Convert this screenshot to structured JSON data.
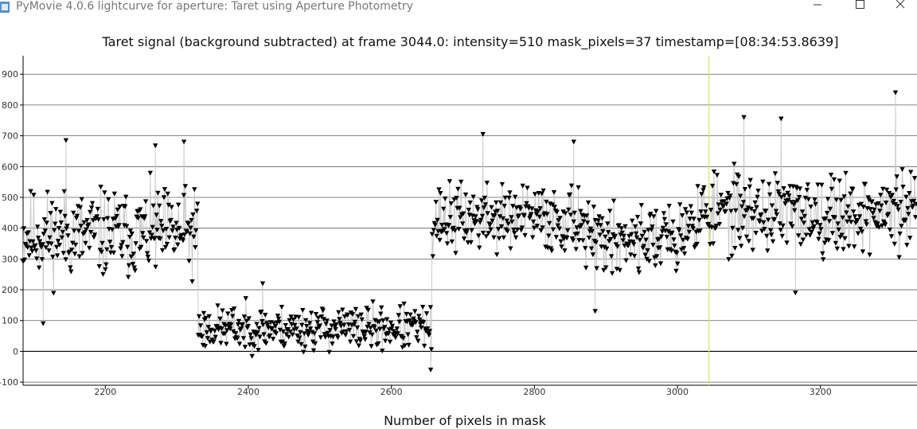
{
  "window": {
    "title": "PyMovie 4.0.6 lightcurve for aperture: Taret using Aperture Photometry",
    "controls": {
      "minimize_icon": "minimize-icon",
      "maximize_icon": "maximize-icon",
      "close_icon": "close-icon"
    }
  },
  "chart_data": {
    "type": "scatter",
    "title": "Taret signal (background subtracted) at frame 3044.0: intensity=510 mask_pixels=37 timestamp=[08:34:53.8639]",
    "xlabel": "Number of pixels in mask",
    "ylabel": "",
    "xlim": [
      2085,
      3335
    ],
    "ylim": [
      -110,
      960
    ],
    "x_ticks": [
      2200,
      2400,
      2600,
      2800,
      3000,
      3200
    ],
    "y_ticks": [
      -100,
      0,
      100,
      200,
      300,
      400,
      500,
      600,
      700,
      800,
      900
    ],
    "grid": "horizontal",
    "marker": "triangle-down",
    "marker_color": "#000000",
    "line_color": "#c8c8c8",
    "zero_line": 0,
    "cursor_x": 3044,
    "cursor_color": "#d8e07a",
    "segments": [
      {
        "x_start": 2085,
        "x_end": 2330,
        "mean": 380,
        "spread": 110,
        "n": 230,
        "seed": 11
      },
      {
        "x_start": 2330,
        "x_end": 2657,
        "mean": 75,
        "spread": 55,
        "n": 300,
        "seed": 23
      },
      {
        "x_start": 2657,
        "x_end": 2870,
        "mean": 430,
        "spread": 85,
        "n": 200,
        "seed": 37
      },
      {
        "x_start": 2870,
        "x_end": 3010,
        "mean": 370,
        "spread": 85,
        "n": 130,
        "seed": 41
      },
      {
        "x_start": 3010,
        "x_end": 3335,
        "mean": 450,
        "spread": 100,
        "n": 300,
        "seed": 53
      }
    ],
    "labeled_points": [
      {
        "x": 2145,
        "y": 685
      },
      {
        "x": 2113,
        "y": 90
      },
      {
        "x": 2270,
        "y": 668
      },
      {
        "x": 2310,
        "y": 680
      },
      {
        "x": 2420,
        "y": 220
      },
      {
        "x": 2655,
        "y": -60
      },
      {
        "x": 2728,
        "y": 705
      },
      {
        "x": 2855,
        "y": 680
      },
      {
        "x": 2885,
        "y": 130
      },
      {
        "x": 3093,
        "y": 760
      },
      {
        "x": 3145,
        "y": 755
      },
      {
        "x": 3305,
        "y": 840
      },
      {
        "x": 3165,
        "y": 190
      }
    ]
  }
}
